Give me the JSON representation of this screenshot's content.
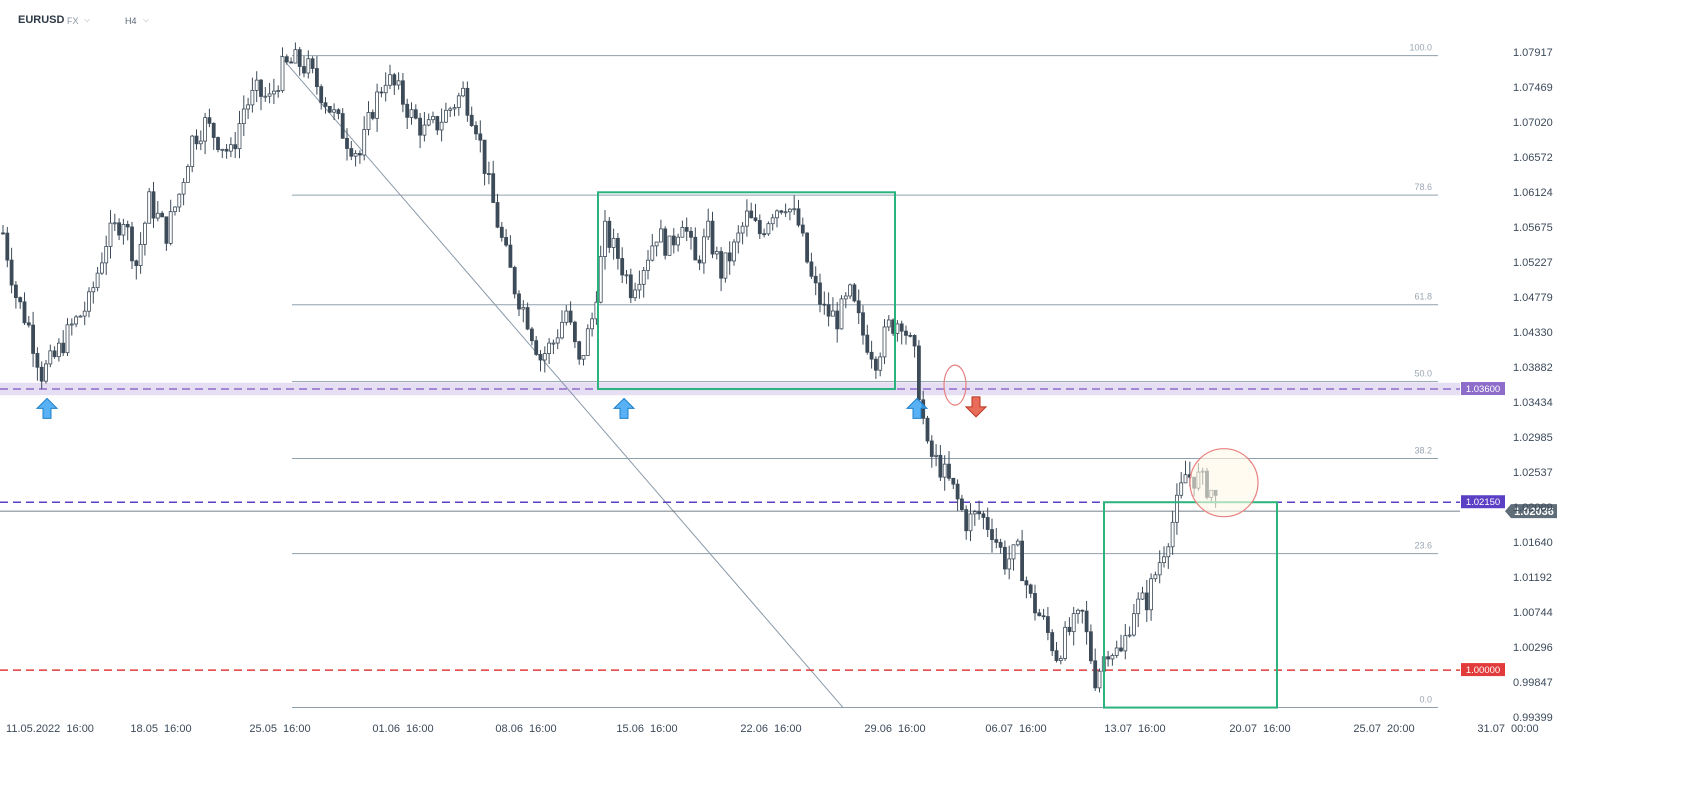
{
  "header": {
    "symbol": "EURUSD",
    "market": "FX",
    "timeframe": "H4"
  },
  "chart_data": {
    "type": "candlestick",
    "title": "",
    "y_axis": {
      "ticks": [
        "1.07917",
        "1.07469",
        "1.07020",
        "1.06572",
        "1.06124",
        "1.05675",
        "1.05227",
        "1.04779",
        "1.04330",
        "1.03882",
        "1.03434",
        "1.02985",
        "1.02537",
        "1.02089",
        "1.01640",
        "1.01192",
        "1.00744",
        "1.00296",
        "0.99847",
        "0.99399"
      ],
      "range": [
        0.99399,
        1.07917
      ]
    },
    "x_axis": {
      "ticks": [
        "11.05.2022  16:00",
        "18.05  16:00",
        "25.05  16:00",
        "01.06  16:00",
        "08.06  16:00",
        "15.06  16:00",
        "22.06  16:00",
        "29.06  16:00",
        "06.07  16:00",
        "13.07  16:00",
        "20.07  16:00",
        "25.07  20:00",
        "31.07  00:00"
      ]
    },
    "fibonacci": {
      "high": 1.0787,
      "low": 0.9952,
      "levels": [
        {
          "label": "100.0",
          "value": 1.0787
        },
        {
          "label": "78.6",
          "value": 1.06083
        },
        {
          "label": "61.8",
          "value": 1.0468
        },
        {
          "label": "50.0",
          "value": 1.03695
        },
        {
          "label": "38.2",
          "value": 1.0271
        },
        {
          "label": "23.6",
          "value": 1.01491
        },
        {
          "label": "0.0",
          "value": 0.9952
        }
      ]
    },
    "horizontal_lines": [
      {
        "label": "1.03600",
        "value": 1.036,
        "color": "#8e6cc9",
        "style": "dashed",
        "zone": [
          1.0352,
          1.0368
        ]
      },
      {
        "label": "1.02150",
        "value": 1.0215,
        "color": "#5b3fc4",
        "style": "dashed"
      },
      {
        "label": "1.00000",
        "value": 1.0,
        "color": "#e23b3b",
        "style": "dashed"
      }
    ],
    "current_price": {
      "label": "1.02036",
      "value": 1.02036,
      "color": "#5f6d79"
    },
    "trendline": {
      "from": {
        "x": "25.05  16:00",
        "y": 1.0787
      },
      "to": {
        "x": "29.06  16:00",
        "y": 0.9952
      }
    },
    "rectangles": [
      {
        "x_from": "13.06",
        "x_to": "29.06",
        "y_top": 1.0612,
        "y_bottom": 1.036,
        "color": "#2bb37e"
      },
      {
        "x_from": "12.07",
        "x_to": "20.07",
        "y_top": 1.0215,
        "y_bottom": 0.9952,
        "color": "#2bb37e"
      }
    ],
    "annotations": [
      {
        "type": "arrow-up",
        "date": "12.05",
        "y": 1.0348,
        "color": "#3aa3f2"
      },
      {
        "type": "arrow-up",
        "date": "15.06",
        "y": 1.0348,
        "color": "#3aa3f2"
      },
      {
        "type": "arrow-up",
        "date": "01.07",
        "y": 1.0348,
        "color": "#3aa3f2"
      },
      {
        "type": "arrow-down",
        "date": "04.07",
        "y": 1.035,
        "color": "#e5533d"
      },
      {
        "type": "ellipse",
        "date": "03.07",
        "y": 1.0365,
        "color": "#e88080"
      },
      {
        "type": "circle",
        "date": "18.07",
        "y": 1.024,
        "color": "#e88080"
      }
    ],
    "price_path": [
      [
        0,
        1.056
      ],
      [
        3,
        1.048
      ],
      [
        6,
        1.044
      ],
      [
        9,
        1.038
      ],
      [
        12,
        1.04
      ],
      [
        16,
        1.044
      ],
      [
        20,
        1.047
      ],
      [
        24,
        1.055
      ],
      [
        28,
        1.058
      ],
      [
        31,
        1.052
      ],
      [
        34,
        1.06
      ],
      [
        38,
        1.056
      ],
      [
        41,
        1.061
      ],
      [
        44,
        1.068
      ],
      [
        47,
        1.07
      ],
      [
        50,
        1.068
      ],
      [
        53,
        1.066
      ],
      [
        56,
        1.072
      ],
      [
        59,
        1.074
      ],
      [
        62,
        1.073
      ],
      [
        65,
        1.077
      ],
      [
        68,
        1.078
      ],
      [
        71,
        1.077
      ],
      [
        74,
        1.074
      ],
      [
        77,
        1.071
      ],
      [
        80,
        1.068
      ],
      [
        83,
        1.066
      ],
      [
        86,
        1.072
      ],
      [
        89,
        1.076
      ],
      [
        92,
        1.074
      ],
      [
        95,
        1.071
      ],
      [
        98,
        1.069
      ],
      [
        101,
        1.07
      ],
      [
        104,
        1.072
      ],
      [
        107,
        1.074
      ],
      [
        110,
        1.07
      ],
      [
        113,
        1.062
      ],
      [
        116,
        1.055
      ],
      [
        119,
        1.049
      ],
      [
        122,
        1.045
      ],
      [
        125,
        1.04
      ],
      [
        128,
        1.042
      ],
      [
        131,
        1.046
      ],
      [
        134,
        1.039
      ],
      [
        137,
        1.045
      ],
      [
        140,
        1.056
      ],
      [
        143,
        1.053
      ],
      [
        146,
        1.049
      ],
      [
        149,
        1.052
      ],
      [
        152,
        1.056
      ],
      [
        155,
        1.054
      ],
      [
        158,
        1.058
      ],
      [
        161,
        1.052
      ],
      [
        164,
        1.056
      ],
      [
        167,
        1.051
      ],
      [
        170,
        1.054
      ],
      [
        173,
        1.058
      ],
      [
        176,
        1.056
      ],
      [
        179,
        1.059
      ],
      [
        182,
        1.06
      ],
      [
        185,
        1.057
      ],
      [
        188,
        1.05
      ],
      [
        191,
        1.046
      ],
      [
        194,
        1.045
      ],
      [
        197,
        1.048
      ],
      [
        200,
        1.043
      ],
      [
        203,
        1.04
      ],
      [
        206,
        1.044
      ],
      [
        209,
        1.045
      ],
      [
        212,
        1.04
      ],
      [
        215,
        1.028
      ],
      [
        218,
        1.026
      ],
      [
        221,
        1.023
      ],
      [
        224,
        1.019
      ],
      [
        227,
        1.02
      ],
      [
        230,
        1.018
      ],
      [
        233,
        1.014
      ],
      [
        236,
        1.015
      ],
      [
        239,
        1.009
      ],
      [
        242,
        1.006
      ],
      [
        245,
        1.002
      ],
      [
        248,
        1.005
      ],
      [
        251,
        1.007
      ],
      [
        254,
        0.999
      ],
      [
        257,
        1.003
      ],
      [
        260,
        1.002
      ],
      [
        263,
        1.008
      ],
      [
        266,
        1.009
      ],
      [
        269,
        1.014
      ],
      [
        272,
        1.019
      ],
      [
        275,
        1.025
      ],
      [
        278,
        1.0245
      ],
      [
        281,
        1.023
      ],
      [
        283,
        1.0205
      ]
    ]
  }
}
